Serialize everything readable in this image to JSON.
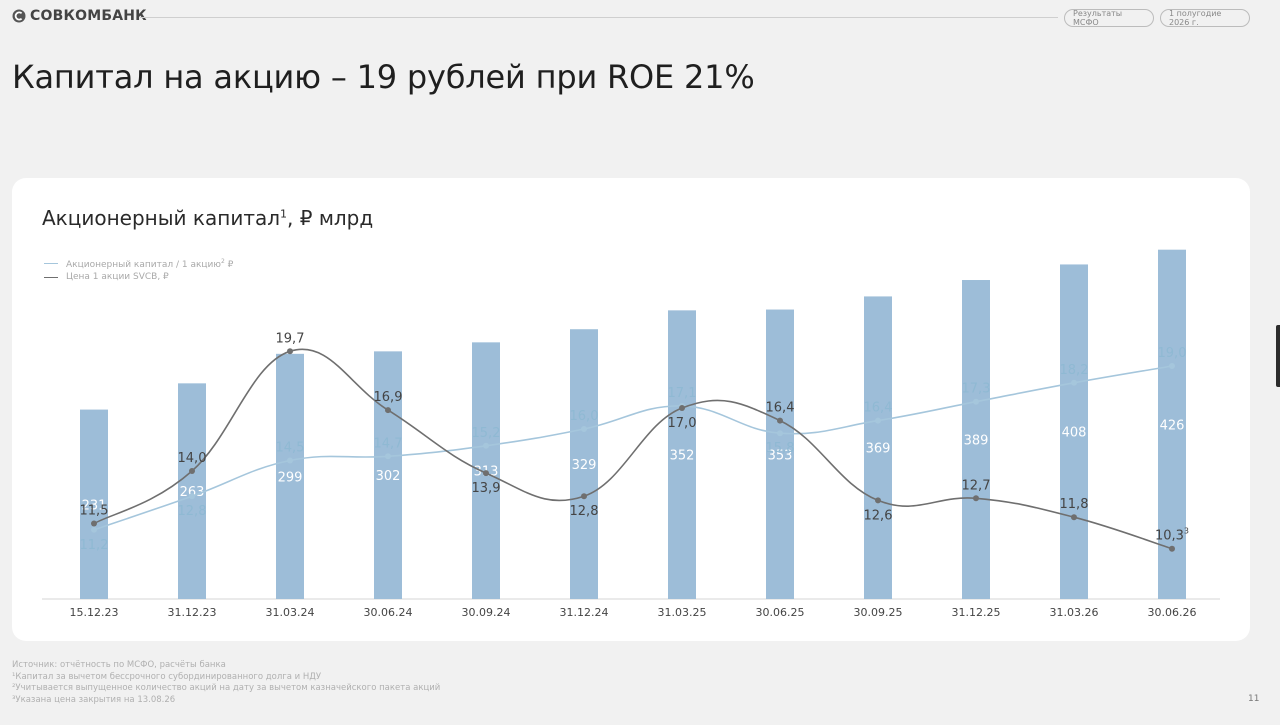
{
  "header": {
    "brand": "СОВКОМБАНК",
    "report_pill": "Результаты МСФО",
    "period_pill": "1 полугодие 2026 г."
  },
  "page_title": "Капитал на акцию – 19 рублей при ROE 21%",
  "chart_title": {
    "text": "Акционерный капитал",
    "footnote_mark": "1",
    "suffix": ", ₽ млрд"
  },
  "legend": {
    "item1": "Акционерный капитал / 1 акцию",
    "item1_mark": "2",
    "item1_suffix": " ₽",
    "item2": "Цена 1 акции SVCB, ₽"
  },
  "colors": {
    "bar": "#9dbdd8",
    "bar_label": "#ffffff",
    "capital_per_share_line": "#a5c6dc",
    "capital_per_share_label": "#8fb9d3",
    "share_price_line": "#6f6f6f",
    "share_price_label": "#444444"
  },
  "chart_data": {
    "type": "bar",
    "categories": [
      "15.12.23",
      "31.12.23",
      "31.03.24",
      "30.06.24",
      "30.09.24",
      "31.12.24",
      "31.03.25",
      "30.06.25",
      "30.09.25",
      "31.12.25",
      "31.03.26",
      "30.06.26"
    ],
    "series": [
      {
        "type": "bar",
        "values": [
          231,
          263,
          299,
          302,
          313,
          329,
          352,
          353,
          369,
          389,
          408,
          426
        ],
        "labels": [
          "231",
          "263",
          "299",
          "302",
          "313",
          "329",
          "352",
          "353",
          "369",
          "389",
          "408",
          "426"
        ]
      },
      {
        "type": "line",
        "name": "Акционерный капитал / 1 акцию ₽",
        "values": [
          11.2,
          12.8,
          14.5,
          14.7,
          15.2,
          16.0,
          17.1,
          15.8,
          16.4,
          17.3,
          18.2,
          19.0
        ],
        "labels": [
          "11,2",
          "12,8",
          "14,5",
          "14,7",
          "15,2",
          "16,0",
          "17,1",
          "15,8",
          "16,4",
          "17,3",
          "18,2",
          "19,0"
        ],
        "label_positions": [
          "below",
          "below",
          "above",
          "above",
          "above",
          "above",
          "above",
          "below",
          "above",
          "above",
          "above",
          "above"
        ]
      },
      {
        "type": "line",
        "name": "Цена 1 акции SVCB, ₽",
        "values": [
          11.5,
          14.0,
          19.7,
          16.9,
          13.9,
          12.8,
          17.0,
          16.4,
          12.6,
          12.7,
          11.8,
          10.3
        ],
        "labels": [
          "11,5",
          "14,0",
          "19,7",
          "16,9",
          "13,9",
          "12,8",
          "17,0",
          "16,4",
          "12,6",
          "12,7",
          "11,8",
          "10,3"
        ],
        "label_positions": [
          "above",
          "above",
          "above",
          "above",
          "below",
          "below",
          "below",
          "above",
          "below",
          "above",
          "above",
          "above"
        ],
        "last_label_footnote": "3"
      }
    ],
    "bar_ylim": [
      0,
      500
    ],
    "line_ylim": [
      7,
      23
    ],
    "grid": false
  },
  "footnotes": [
    "Источник: отчётность по МСФО, расчёты банка",
    "¹Капитал за вычетом бессрочного субординированного долга и НДУ",
    "²Учитывается выпущенное количество акций на дату за вычетом казначейского пакета акций",
    "³Указана цена закрытия на 13.08.26"
  ],
  "page_number": "11"
}
